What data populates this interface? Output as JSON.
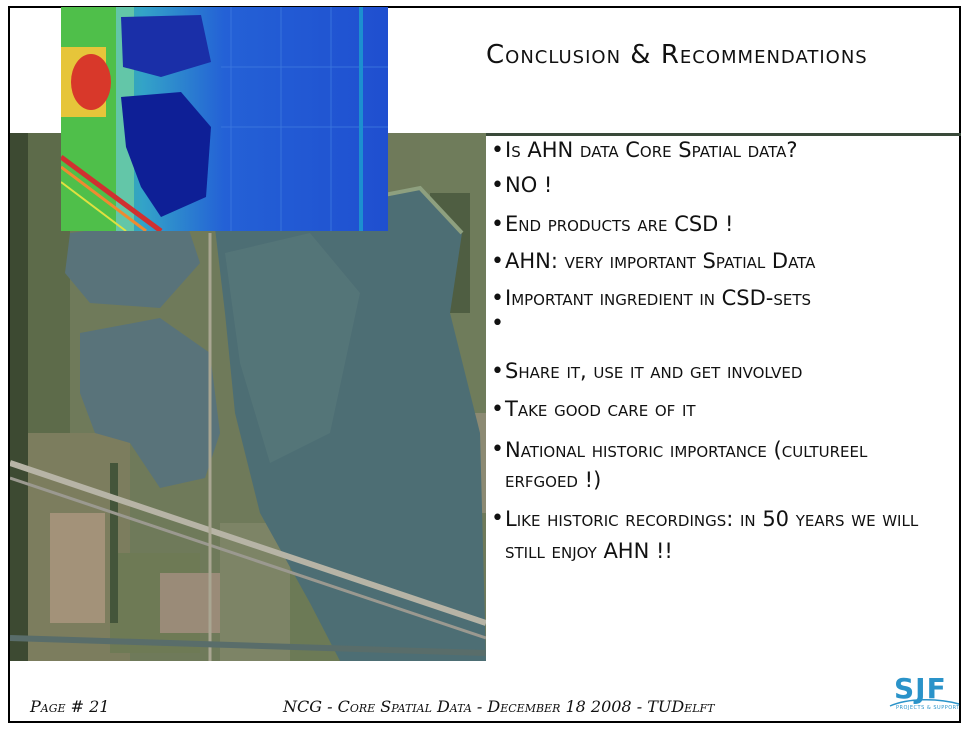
{
  "slide": {
    "title": "Conclusion & Recommendations",
    "bullets": [
      "Is AHN data Core Spatial data?",
      "NO !",
      "End products are CSD !",
      "AHN: very important Spatial Data",
      "Important ingredient in CSD-sets",
      "",
      "Share it, use it and get involved",
      "Take good care of it",
      "National historic importance (cultureel erfgoed !)",
      "Like historic recordings: in 50 years we will still enjoy AHN !!"
    ]
  },
  "footer": {
    "page": "Page # 21",
    "center": "NCG - Core Spatial Data - December 18 2008 - TUDelft"
  },
  "logo": {
    "main": "SJF",
    "sub": "PROJECTS & SUPPORT",
    "color": "#2a93c9"
  },
  "colors": {
    "text": "#111111",
    "border": "#000000",
    "water": "#4d6e74",
    "heightmap_low": "#1a3ec8",
    "heightmap_high": "#d8382a"
  }
}
